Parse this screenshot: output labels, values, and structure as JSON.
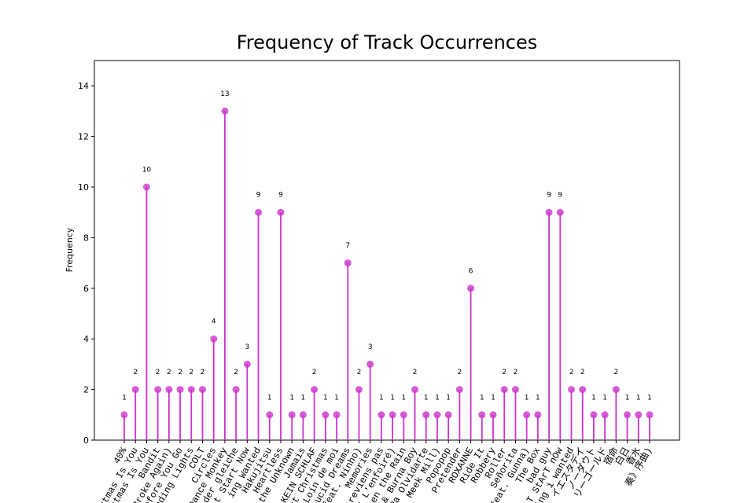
{
  "chart_data": {
    "type": "lollipop",
    "title": "Frequency of Track Occurrences",
    "ylabel": "Frequency",
    "color": "#cc33cc",
    "categories": [
      "40%",
      "stmas Is You",
      "stmas Is You",
      "Bandit",
      "Broke Again)",
      "Before You Go",
      "nding Lights",
      "COLT",
      "Circles",
      "Dance Monkey",
      "der gleiche",
      "t Start Now",
      "ing Wanted",
      "Hakujitsu",
      "Heartless",
      "the Unknown",
      "Jamais",
      "KEIN SCHLAF",
      "st Christmas",
      "Loin de moi",
      "Lucid Dreams",
      "feat. Ninho)",
      "Memories",
      "reviens pas",
      "s L'enfoiré)",
      "en the Rain",
      "& Burna Boy",
      "Pa Olvidarte",
      "Meek Mill)",
      "Popopop",
      "Pretender",
      "ROXANNE",
      "Ride It",
      "Robbery",
      "Roller",
      "Señorita",
      "(feat. Gunna)",
      "The Box",
      "bad guy",
      "T StArT nOw",
      "ing i wanted",
      "イエスタデイ",
      "ノーダウト",
      "リーゴールド",
      "宿命",
      "白日",
      "香水",
      "奏》序曲)"
    ],
    "values": [
      1,
      2,
      10,
      2,
      2,
      2,
      2,
      2,
      4,
      13,
      2,
      3,
      9,
      1,
      9,
      1,
      1,
      2,
      1,
      1,
      7,
      2,
      3,
      1,
      1,
      1,
      2,
      1,
      1,
      1,
      2,
      6,
      1,
      1,
      2,
      2,
      1,
      1,
      9,
      9,
      2,
      2,
      1,
      1,
      2,
      1,
      1,
      1
    ],
    "ylim": [
      0,
      15
    ],
    "yticks": [
      0,
      2,
      4,
      6,
      8,
      10,
      12,
      14
    ]
  }
}
